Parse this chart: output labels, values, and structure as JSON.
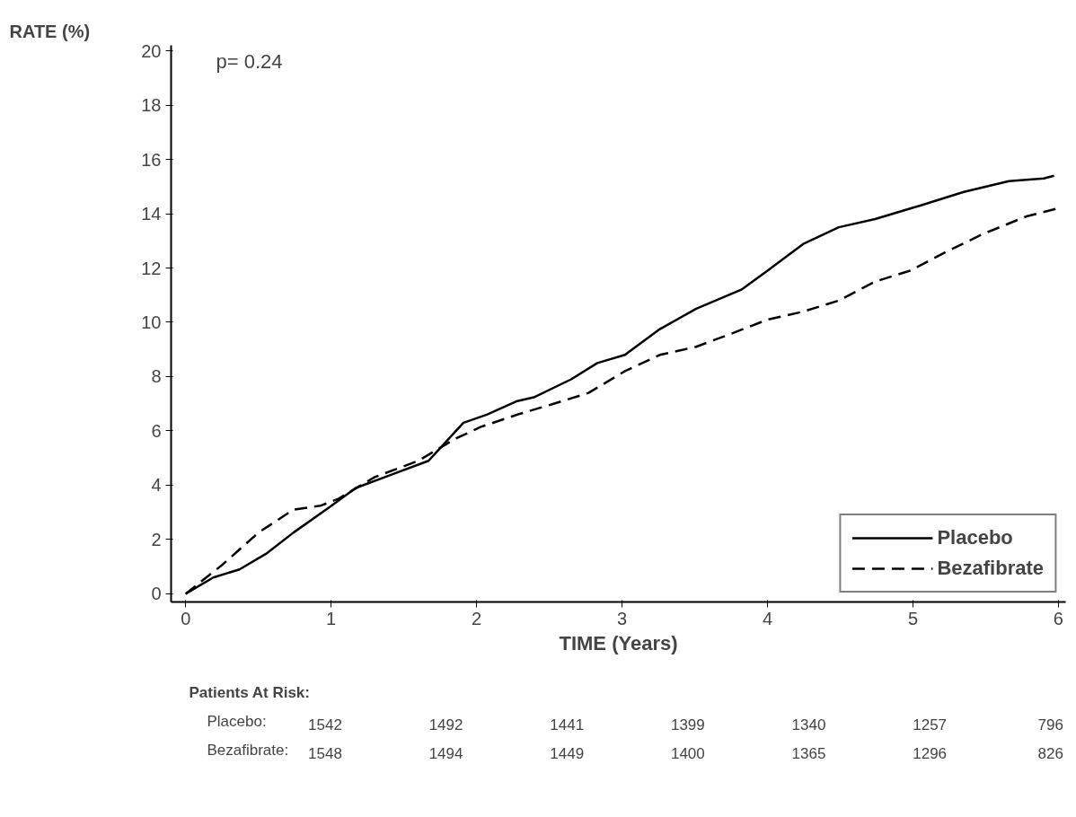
{
  "chart_data": {
    "type": "line",
    "xlabel": "TIME (Years)",
    "ylabel": "RATE (%)",
    "xlim": [
      -0.1,
      6.05
    ],
    "ylim": [
      -0.3,
      20.2
    ],
    "xticks": [
      0,
      1,
      2,
      3,
      4,
      5,
      6
    ],
    "yticks": [
      0,
      2,
      4,
      6,
      8,
      10,
      12,
      14,
      16,
      18,
      20
    ],
    "grid": false,
    "legend": "bottom right",
    "marker": "none",
    "annotations": [
      "p= 0.24",
      "Patients At Risk:",
      "Placebo:",
      "1542",
      "1492",
      "1441",
      "1399",
      "1340",
      "1257",
      "796",
      "Bezafibrate:",
      "1548",
      "1494",
      "1449",
      "1400",
      "1365",
      "1296",
      "826"
    ],
    "series": [
      {
        "name": "Placebo",
        "color": "#000000",
        "line_style": "solid",
        "x": [
          0,
          0.19,
          0.37,
          0.56,
          0.74,
          0.99,
          1.17,
          1.42,
          1.67,
          1.91,
          2.07,
          2.28,
          2.4,
          2.65,
          2.83,
          3.02,
          3.26,
          3.51,
          3.82,
          4.0,
          4.25,
          4.49,
          4.74,
          5.05,
          5.35,
          5.66,
          5.9,
          5.97
        ],
        "values": [
          0,
          0.6,
          0.9,
          1.5,
          2.25,
          3.2,
          3.9,
          4.4,
          4.9,
          6.3,
          6.6,
          7.1,
          7.25,
          7.9,
          8.5,
          8.8,
          9.75,
          10.5,
          11.2,
          11.9,
          12.9,
          13.5,
          13.8,
          14.3,
          14.8,
          15.2,
          15.3,
          15.4
        ]
      },
      {
        "name": "Bezafibrate",
        "color": "#000000",
        "line_style": "dashed",
        "x": [
          0,
          0.25,
          0.5,
          0.74,
          0.93,
          1.05,
          1.3,
          1.6,
          1.85,
          2.03,
          2.28,
          2.53,
          2.77,
          3.02,
          3.26,
          3.51,
          3.76,
          4.0,
          4.25,
          4.49,
          4.74,
          4.98,
          5.23,
          5.48,
          5.78,
          6.0
        ],
        "values": [
          0,
          1.06,
          2.25,
          3.1,
          3.25,
          3.5,
          4.3,
          4.9,
          5.7,
          6.15,
          6.6,
          7.0,
          7.4,
          8.2,
          8.8,
          9.1,
          9.6,
          10.1,
          10.4,
          10.8,
          11.5,
          11.9,
          12.6,
          13.25,
          13.9,
          14.2
        ]
      }
    ]
  }
}
